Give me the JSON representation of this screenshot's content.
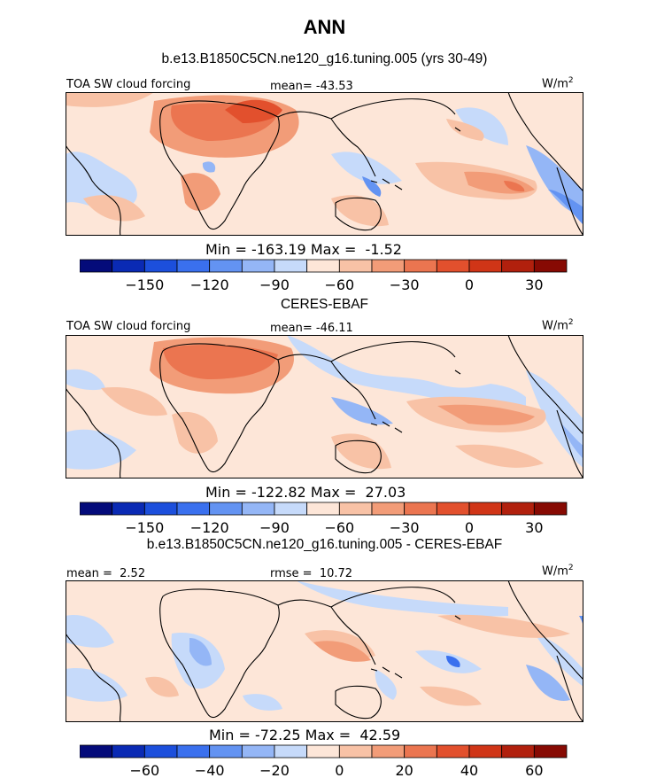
{
  "title": "ANN",
  "panels": [
    {
      "id": "model",
      "title": "b.e13.B1850C5CN.ne120_g16.tuning.005 (yrs 30-49)",
      "left_label": "TOA SW cloud forcing",
      "center_label": "mean= -43.53",
      "unit_base": "W/m",
      "unit_exp": "2",
      "minmax": "Min = -163.19 Max =  -1.52",
      "colorbar": {
        "colors": [
          "#040b7a",
          "#0a2ab4",
          "#1c4fdc",
          "#3a70ee",
          "#6393f2",
          "#94b6f6",
          "#c6dafa",
          "#fde6d8",
          "#f8c2a6",
          "#f29c78",
          "#eb7550",
          "#e2502d",
          "#d03517",
          "#b1200d",
          "#870a03"
        ],
        "ticks": [
          "-150",
          "-120",
          "-90",
          "-60",
          "-30",
          "0",
          "30"
        ]
      }
    },
    {
      "id": "obs",
      "title": "CERES-EBAF",
      "left_label": "TOA SW cloud forcing",
      "center_label": "mean= -46.11",
      "unit_base": "W/m",
      "unit_exp": "2",
      "minmax": "Min = -122.82 Max =  27.03",
      "colorbar": {
        "colors": [
          "#040b7a",
          "#0a2ab4",
          "#1c4fdc",
          "#3a70ee",
          "#6393f2",
          "#94b6f6",
          "#c6dafa",
          "#fde6d8",
          "#f8c2a6",
          "#f29c78",
          "#eb7550",
          "#e2502d",
          "#d03517",
          "#b1200d",
          "#870a03"
        ],
        "ticks": [
          "-150",
          "-120",
          "-90",
          "-60",
          "-30",
          "0",
          "30"
        ]
      }
    },
    {
      "id": "diff",
      "title": "b.e13.B1850C5CN.ne120_g16.tuning.005 - CERES-EBAF",
      "left_label": "mean =  2.52",
      "center_label": "rmse =  10.72",
      "unit_base": "W/m",
      "unit_exp": "2",
      "minmax": "Min = -72.25 Max =  42.59",
      "colorbar": {
        "colors": [
          "#040b7a",
          "#0a2ab4",
          "#1c4fdc",
          "#3a70ee",
          "#6393f2",
          "#94b6f6",
          "#c6dafa",
          "#fde6d8",
          "#f8c2a6",
          "#f29c78",
          "#eb7550",
          "#e2502d",
          "#d03517",
          "#b1200d",
          "#870a03"
        ],
        "ticks": [
          "-60",
          "-40",
          "-20",
          "0",
          "20",
          "40",
          "60"
        ]
      }
    }
  ],
  "chart_data": [
    {
      "type": "heatmap",
      "title": "b.e13.B1850C5CN.ne120_g16.tuning.005 (yrs 30-49)",
      "field": "TOA SW cloud forcing",
      "units": "W/m2",
      "mean": -43.53,
      "min": -163.19,
      "max": -1.52,
      "colorbar_ticks": [
        -150,
        -120,
        -90,
        -60,
        -30,
        0,
        30
      ]
    },
    {
      "type": "heatmap",
      "title": "CERES-EBAF",
      "field": "TOA SW cloud forcing",
      "units": "W/m2",
      "mean": -46.11,
      "min": -122.82,
      "max": 27.03,
      "colorbar_ticks": [
        -150,
        -120,
        -90,
        -60,
        -30,
        0,
        30
      ]
    },
    {
      "type": "heatmap",
      "title": "b.e13.B1850C5CN.ne120_g16.tuning.005 - CERES-EBAF",
      "units": "W/m2",
      "mean": 2.52,
      "rmse": 10.72,
      "min": -72.25,
      "max": 42.59,
      "colorbar_ticks": [
        -60,
        -40,
        -20,
        0,
        20,
        40,
        60
      ]
    }
  ]
}
